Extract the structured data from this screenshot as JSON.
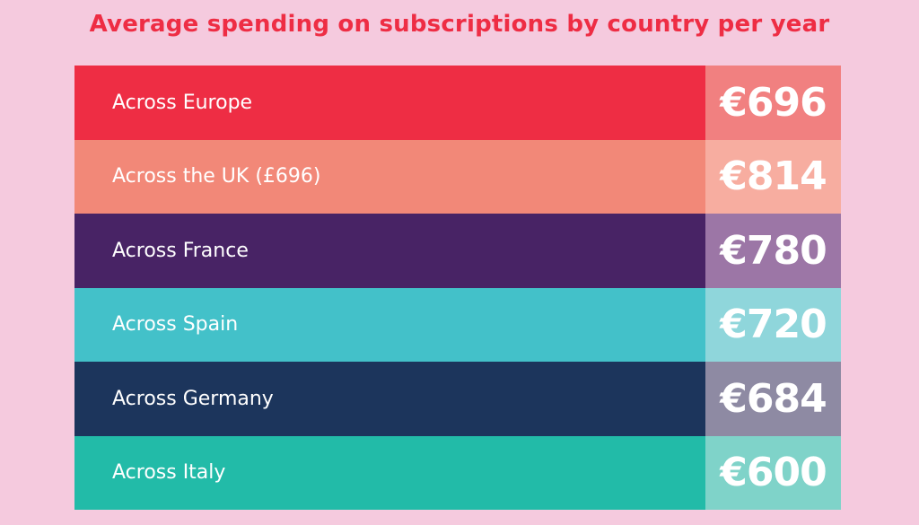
{
  "title": "Average spending on subscriptions by country per year",
  "colors": {
    "background": "#f5cade",
    "title": "#ee2d44"
  },
  "chart_data": {
    "type": "table",
    "title": "Average spending on subscriptions by country per year",
    "currency": "€",
    "rows": [
      {
        "label": "Across Europe",
        "value": 696,
        "value_text": "€696",
        "color": "#ee2d44",
        "value_color": "#f18080"
      },
      {
        "label": "Across the UK (£696)",
        "value": 814,
        "value_text": "€814",
        "color": "#f28878",
        "value_color": "#f7ada0"
      },
      {
        "label": "Across France",
        "value": 780,
        "value_text": "€780",
        "color": "#482365",
        "value_color": "#9c76a6"
      },
      {
        "label": "Across Spain",
        "value": 720,
        "value_text": "€720",
        "color": "#43c1c9",
        "value_color": "#8fd6db"
      },
      {
        "label": "Across Germany",
        "value": 684,
        "value_text": "€684",
        "color": "#1c355c",
        "value_color": "#8e8aa3"
      },
      {
        "label": "Across Italy",
        "value": 600,
        "value_text": "€600",
        "color": "#22bba8",
        "value_color": "#7fd3c9"
      }
    ]
  }
}
